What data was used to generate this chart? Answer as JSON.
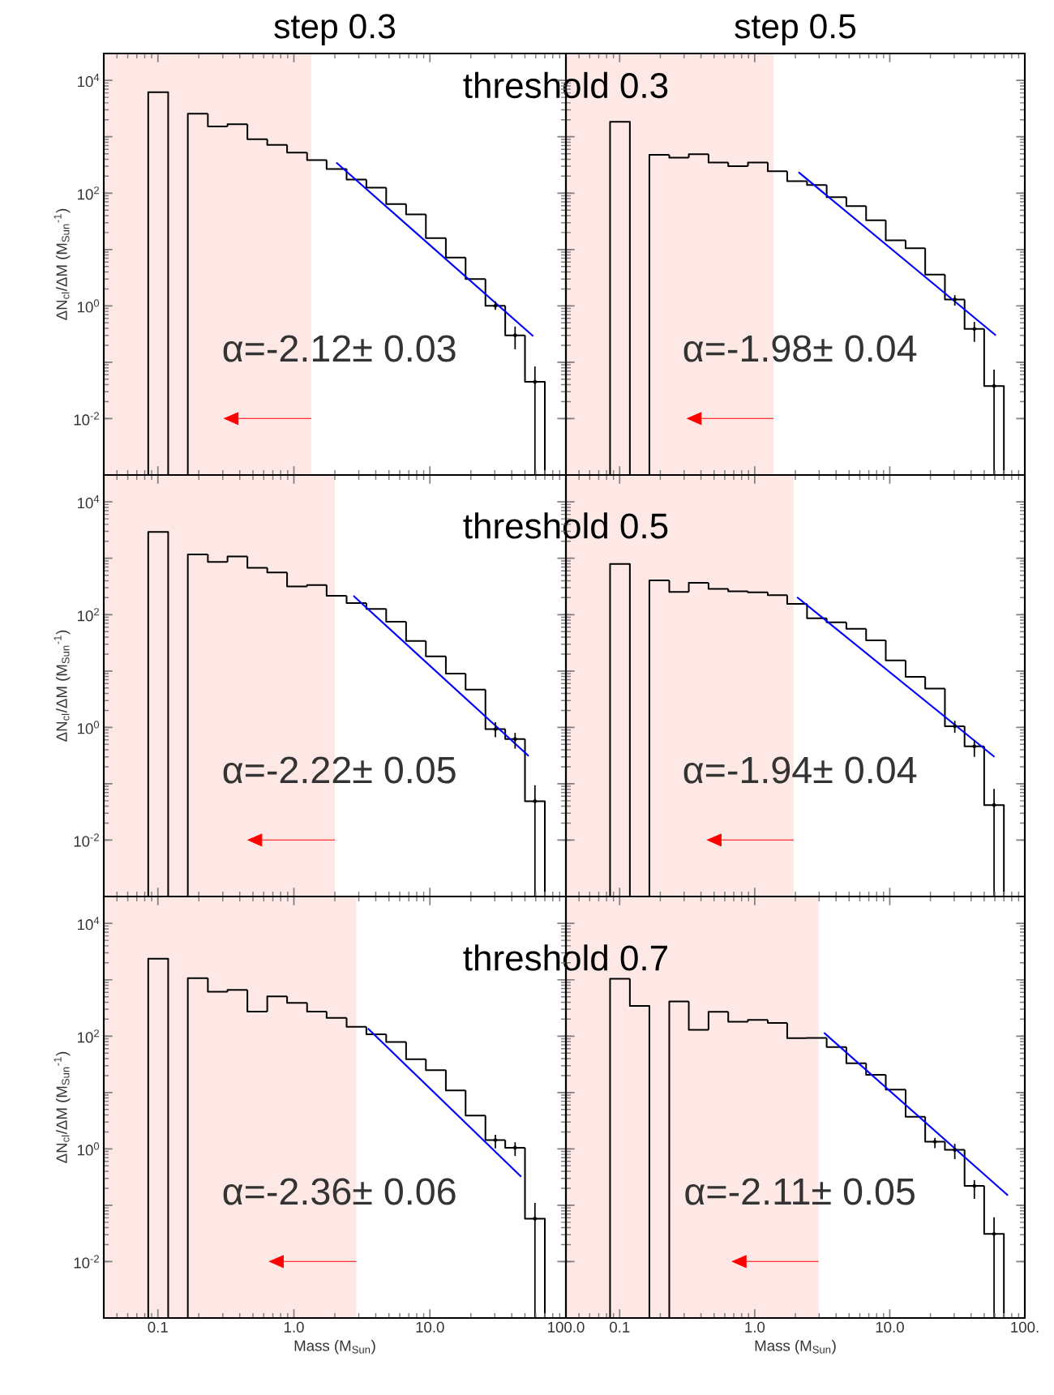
{
  "chart_data": [
    {
      "type": "histogram",
      "title": "step 0.3",
      "ylabel": "ΔN$_{cl}$/ΔM (M$_{Sun}$$^{-1}$)",
      "log": "xy",
      "tick_labels": "y",
      "color": "#000000",
      "bins": [
        0.0849,
        0.119,
        0.166,
        0.233,
        0.325,
        0.455,
        0.637,
        0.891,
        1.25,
        1.74,
        2.44,
        3.41,
        4.77,
        6.68,
        9.34,
        13.1,
        18.3,
        25.6,
        35.8,
        50.0,
        70.0
      ],
      "values": [
        6200,
        null,
        2570,
        1520,
        1670,
        906,
        718,
        523,
        385,
        267,
        174,
        125,
        64,
        42,
        16,
        7.2,
        3.0,
        1.0,
        0.3,
        0.045
      ],
      "series": [
        {
          "type": "line",
          "color": "#0000ff",
          "x": [
            2.05,
            57.5
          ],
          "values": [
            349,
            0.29
          ]
        },
        {
          "type": "scatter",
          "color": "#000000",
          "x": [
            30.3,
            42.3,
            59.2
          ],
          "values": [
            1.0,
            0.3,
            0.045
          ],
          "errors": [
            [
              0.85,
              1.2
            ],
            [
              0.17,
              0.43
            ],
            [
              0.001,
              0.084
            ]
          ]
        }
      ],
      "bands": [
        {
          "axis": "x",
          "from": 0.04,
          "to": 1.34,
          "color": "#fde8e5"
        }
      ],
      "annotations": [
        "α=-2.12± 0.03",
        "threshold 0.3"
      ],
      "xlim": [
        0.04,
        100
      ],
      "ylim": [
        0.001,
        30000
      ],
      "xticks": [
        {
          "value": 0.1,
          "label": null
        },
        {
          "value": 1,
          "label": null
        },
        {
          "value": 10,
          "label": null
        },
        {
          "value": 100,
          "label": null
        }
      ],
      "yticks": [
        {
          "value": 0.01,
          "label": "10$^{-2}$"
        },
        {
          "value": 0.1,
          "label": null
        },
        {
          "value": 1,
          "label": "10$^{0}$"
        },
        {
          "value": 10,
          "label": null
        },
        {
          "value": 100,
          "label": "10$^{2}$"
        },
        {
          "value": 1000,
          "label": null
        },
        {
          "value": 10000,
          "label": "10$^{4}$"
        }
      ]
    },
    {
      "type": "histogram",
      "title": "step 0.5",
      "log": "xy",
      "tick_labels": false,
      "color": "#000000",
      "bins": [
        0.0849,
        0.119,
        0.166,
        0.233,
        0.325,
        0.455,
        0.637,
        0.891,
        1.25,
        1.74,
        2.44,
        3.41,
        4.77,
        6.68,
        9.34,
        13.1,
        18.3,
        25.6,
        35.8,
        50.0,
        70.0
      ],
      "values": [
        1845,
        null,
        480,
        425,
        491,
        349,
        301,
        349,
        244,
        163,
        139,
        85,
        59,
        33,
        14.6,
        10.5,
        3.6,
        1.3,
        0.39,
        0.038
      ],
      "series": [
        {
          "type": "line",
          "color": "#0000ff",
          "x": [
            2.11,
            61
          ],
          "values": [
            236,
            0.3
          ]
        },
        {
          "type": "scatter",
          "color": "#000000",
          "x": [
            30.3,
            42.3,
            59.2
          ],
          "values": [
            1.3,
            0.39,
            0.038
          ],
          "errors": [
            [
              1.01,
              1.55
            ],
            [
              0.23,
              0.52
            ],
            [
              0.001,
              0.074
            ]
          ]
        }
      ],
      "bands": [
        {
          "axis": "x",
          "from": 0.04,
          "to": 1.38,
          "color": "#fde8e5"
        }
      ],
      "annotations": [
        "α=-1.98± 0.04"
      ],
      "xlim": [
        0.04,
        100
      ],
      "ylim": [
        0.001,
        30000
      ],
      "xticks": [
        {
          "value": 0.1,
          "label": null
        },
        {
          "value": 1,
          "label": null
        },
        {
          "value": 10,
          "label": null
        },
        {
          "value": 100,
          "label": null
        }
      ],
      "yticks": [
        {
          "value": 0.01,
          "label": null
        },
        {
          "value": 0.1,
          "label": null
        },
        {
          "value": 1,
          "label": null
        },
        {
          "value": 10,
          "label": null
        },
        {
          "value": 100,
          "label": null
        },
        {
          "value": 1000,
          "label": null
        },
        {
          "value": 10000,
          "label": null
        }
      ]
    },
    {
      "type": "histogram",
      "ylabel": "ΔN$_{cl}$/ΔM (M$_{Sun}$$^{-1}$)",
      "log": "xy",
      "tick_labels": "y",
      "color": "#000000",
      "bins": [
        0.0849,
        0.119,
        0.166,
        0.233,
        0.325,
        0.455,
        0.637,
        0.891,
        1.25,
        1.74,
        2.44,
        3.41,
        4.77,
        6.68,
        9.34,
        13.1,
        18.3,
        25.6,
        35.8,
        50.0,
        70.0
      ],
      "values": [
        2940,
        null,
        1170,
        863,
        1077,
        676,
        562,
        316,
        336,
        216,
        161,
        126,
        75,
        34,
        18.2,
        9.0,
        4.7,
        0.93,
        0.62,
        0.049
      ],
      "series": [
        {
          "type": "line",
          "color": "#0000ff",
          "x": [
            2.74,
            53.3
          ],
          "values": [
            216,
            0.31
          ]
        },
        {
          "type": "scatter",
          "color": "#000000",
          "x": [
            30.3,
            42.3,
            59.2
          ],
          "values": [
            0.93,
            0.62,
            0.049
          ],
          "errors": [
            [
              0.67,
              1.23
            ],
            [
              0.42,
              0.8
            ],
            [
              0.001,
              0.094
            ]
          ]
        }
      ],
      "bands": [
        {
          "axis": "x",
          "from": 0.04,
          "to": 2.0,
          "color": "#fde8e5"
        }
      ],
      "annotations": [
        "α=-2.22± 0.05",
        "threshold 0.5"
      ],
      "xlim": [
        0.04,
        100
      ],
      "ylim": [
        0.001,
        30000
      ],
      "xticks": [
        {
          "value": 0.1,
          "label": null
        },
        {
          "value": 1,
          "label": null
        },
        {
          "value": 10,
          "label": null
        },
        {
          "value": 100,
          "label": null
        }
      ],
      "yticks": [
        {
          "value": 0.01,
          "label": "10$^{-2}$"
        },
        {
          "value": 0.1,
          "label": null
        },
        {
          "value": 1,
          "label": "10$^{0}$"
        },
        {
          "value": 10,
          "label": null
        },
        {
          "value": 100,
          "label": "10$^{2}$"
        },
        {
          "value": 1000,
          "label": null
        },
        {
          "value": 10000,
          "label": "10$^{4}$"
        }
      ]
    },
    {
      "type": "histogram",
      "log": "xy",
      "tick_labels": false,
      "color": "#000000",
      "bins": [
        0.0849,
        0.119,
        0.166,
        0.233,
        0.325,
        0.455,
        0.637,
        0.891,
        1.25,
        1.74,
        2.44,
        3.41,
        4.77,
        6.68,
        9.34,
        13.1,
        18.3,
        25.6,
        35.8,
        50.0,
        70.0
      ],
      "values": [
        792,
        null,
        404,
        253,
        366,
        287,
        260,
        248,
        222,
        155,
        86,
        73,
        56,
        35,
        15.4,
        7.9,
        4.9,
        1.05,
        0.46,
        0.042
      ],
      "series": [
        {
          "type": "line",
          "color": "#0000ff",
          "x": [
            2.06,
            59.6
          ],
          "values": [
            204,
            0.3
          ]
        },
        {
          "type": "scatter",
          "color": "#000000",
          "x": [
            30.3,
            42.3,
            59.2
          ],
          "values": [
            1.05,
            0.46,
            0.042
          ],
          "errors": [
            [
              0.8,
              1.31
            ],
            [
              0.3,
              0.6
            ],
            [
              0.001,
              0.081
            ]
          ]
        }
      ],
      "bands": [
        {
          "axis": "x",
          "from": 0.04,
          "to": 1.94,
          "color": "#fde8e5"
        }
      ],
      "annotations": [
        "α=-1.94± 0.04"
      ],
      "xlim": [
        0.04,
        100
      ],
      "ylim": [
        0.001,
        30000
      ],
      "xticks": [
        {
          "value": 0.1,
          "label": null
        },
        {
          "value": 1,
          "label": null
        },
        {
          "value": 10,
          "label": null
        },
        {
          "value": 100,
          "label": null
        }
      ],
      "yticks": [
        {
          "value": 0.01,
          "label": null
        },
        {
          "value": 0.1,
          "label": null
        },
        {
          "value": 1,
          "label": null
        },
        {
          "value": 10,
          "label": null
        },
        {
          "value": 100,
          "label": null
        },
        {
          "value": 1000,
          "label": null
        },
        {
          "value": 10000,
          "label": null
        }
      ]
    },
    {
      "type": "histogram",
      "ylabel": "ΔN$_{cl}$/ΔM (M$_{Sun}$$^{-1}$)",
      "xlabel": "Mass (M$_{Sun}$)",
      "log": "xy",
      "color": "#000000",
      "bins": [
        0.0849,
        0.119,
        0.166,
        0.233,
        0.325,
        0.455,
        0.637,
        0.891,
        1.25,
        1.74,
        2.44,
        3.41,
        4.77,
        6.68,
        9.34,
        13.1,
        18.3,
        25.6,
        35.8,
        50.0,
        70.0
      ],
      "values": [
        2360,
        null,
        1065,
        613,
        659,
        273,
        509,
        389,
        273,
        211,
        146,
        108,
        79,
        39,
        25,
        10.9,
        3.9,
        1.43,
        1.05,
        0.058
      ],
      "series": [
        {
          "type": "line",
          "color": "#0000ff",
          "x": [
            3.5,
            46.9
          ],
          "values": [
            137,
            0.32
          ]
        },
        {
          "type": "scatter",
          "color": "#000000",
          "x": [
            30.3,
            42.3,
            59.2
          ],
          "values": [
            1.43,
            1.05,
            0.058
          ],
          "errors": [
            [
              1.02,
              1.78
            ],
            [
              0.75,
              1.31
            ],
            [
              0.001,
              0.11
            ]
          ]
        }
      ],
      "bands": [
        {
          "axis": "x",
          "from": 0.04,
          "to": 2.88,
          "color": "#fde8e5"
        }
      ],
      "annotations": [
        "α=-2.36± 0.06",
        "threshold 0.7"
      ],
      "xlim": [
        0.04,
        100
      ],
      "ylim": [
        0.001,
        30000
      ],
      "xticks": [
        {
          "value": 0.1,
          "label": "0.1"
        },
        {
          "value": 1,
          "label": "1.0"
        },
        {
          "value": 10,
          "label": "10.0"
        },
        {
          "value": 100,
          "label": "100.0"
        }
      ],
      "yticks": [
        {
          "value": 0.01,
          "label": "10$^{-2}$"
        },
        {
          "value": 0.1,
          "label": null
        },
        {
          "value": 1,
          "label": "10$^{0}$"
        },
        {
          "value": 10,
          "label": null
        },
        {
          "value": 100,
          "label": "10$^{2}$"
        },
        {
          "value": 1000,
          "label": null
        },
        {
          "value": 10000,
          "label": "10$^{4}$"
        }
      ]
    },
    {
      "type": "histogram",
      "xlabel": "Mass (M$_{Sun}$)",
      "log": "xy",
      "tick_labels": "x",
      "color": "#000000",
      "bins": [
        0.0849,
        0.119,
        0.166,
        0.233,
        0.325,
        0.455,
        0.637,
        0.891,
        1.25,
        1.74,
        2.44,
        3.41,
        4.77,
        6.68,
        9.34,
        13.1,
        18.3,
        25.6,
        35.8,
        50.0,
        70.0
      ],
      "values": [
        1040,
        345,
        null,
        414,
        129,
        270,
        180,
        194,
        171,
        92,
        93,
        64,
        33,
        20.6,
        11.3,
        3.7,
        1.34,
        0.96,
        0.22,
        0.031
      ],
      "series": [
        {
          "type": "line",
          "color": "#0000ff",
          "x": [
            3.26,
            75
          ],
          "values": [
            115,
            0.15
          ]
        },
        {
          "type": "scatter",
          "color": "#000000",
          "x": [
            21.6,
            30.3,
            42.3,
            59.2
          ],
          "values": [
            1.34,
            0.96,
            0.22,
            0.031
          ],
          "errors": [
            [
              1.03,
              1.57
            ],
            [
              0.66,
              1.23
            ],
            [
              0.13,
              0.28
            ],
            [
              0.001,
              0.061
            ]
          ]
        }
      ],
      "bands": [
        {
          "axis": "x",
          "from": 0.04,
          "to": 2.97,
          "color": "#fde8e5"
        }
      ],
      "annotations": [
        "α=-2.11± 0.05"
      ],
      "xlim": [
        0.04,
        100
      ],
      "ylim": [
        0.001,
        30000
      ],
      "xticks": [
        {
          "value": 0.1,
          "label": "0.1"
        },
        {
          "value": 1,
          "label": "1.0"
        },
        {
          "value": 10,
          "label": "10.0"
        },
        {
          "value": 100,
          "label": "100."
        }
      ],
      "yticks": [
        {
          "value": 0.01,
          "label": null
        },
        {
          "value": 0.1,
          "label": null
        },
        {
          "value": 1,
          "label": null
        },
        {
          "value": 10,
          "label": null
        },
        {
          "value": 100,
          "label": null
        },
        {
          "value": 1000,
          "label": null
        },
        {
          "value": 10000,
          "label": null
        }
      ]
    }
  ]
}
